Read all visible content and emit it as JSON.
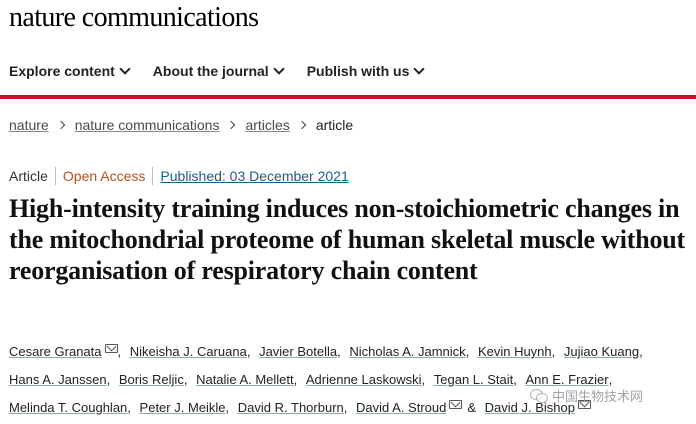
{
  "site": {
    "logo": "nature communications"
  },
  "nav": [
    {
      "label": "Explore content"
    },
    {
      "label": "About the journal"
    },
    {
      "label": "Publish with us"
    }
  ],
  "breadcrumb": [
    {
      "label": "nature"
    },
    {
      "label": "nature communications"
    },
    {
      "label": "articles"
    },
    {
      "label": "article"
    }
  ],
  "meta": {
    "type": "Article",
    "access": "Open Access",
    "published": "Published: 03 December 2021"
  },
  "article": {
    "title": "High-intensity training induces non-stoichiometric changes in the mitochondrial proteome of human skeletal muscle without reorganisation of respiratory chain content"
  },
  "authors": [
    {
      "name": "Cesare Granata",
      "email": true
    },
    {
      "name": "Nikeisha J. Caruana",
      "email": false
    },
    {
      "name": "Javier Botella",
      "email": false
    },
    {
      "name": "Nicholas A. Jamnick",
      "email": false
    },
    {
      "name": "Kevin Huynh",
      "email": false
    },
    {
      "name": "Jujiao Kuang",
      "email": false
    },
    {
      "name": "Hans A. Janssen",
      "email": false
    },
    {
      "name": "Boris Reljic",
      "email": false
    },
    {
      "name": "Natalie A. Mellett",
      "email": false
    },
    {
      "name": "Adrienne Laskowski",
      "email": false
    },
    {
      "name": "Tegan L. Stait",
      "email": false
    },
    {
      "name": "Ann E. Frazier",
      "email": false
    },
    {
      "name": "Melinda T. Coughlan",
      "email": false
    },
    {
      "name": "Peter J. Meikle",
      "email": false
    },
    {
      "name": "David R. Thorburn",
      "email": false
    },
    {
      "name": "David A. Stroud",
      "email": true
    },
    {
      "name": "David J. Bishop",
      "email": true
    }
  ],
  "authors_amp": "&",
  "watermark": {
    "text": "中国生物技术网",
    "icon": "wechat-icon"
  },
  "colors": {
    "accent_bar": "#c8102e",
    "open_access": "#b0551a",
    "link": "#145f8c"
  }
}
